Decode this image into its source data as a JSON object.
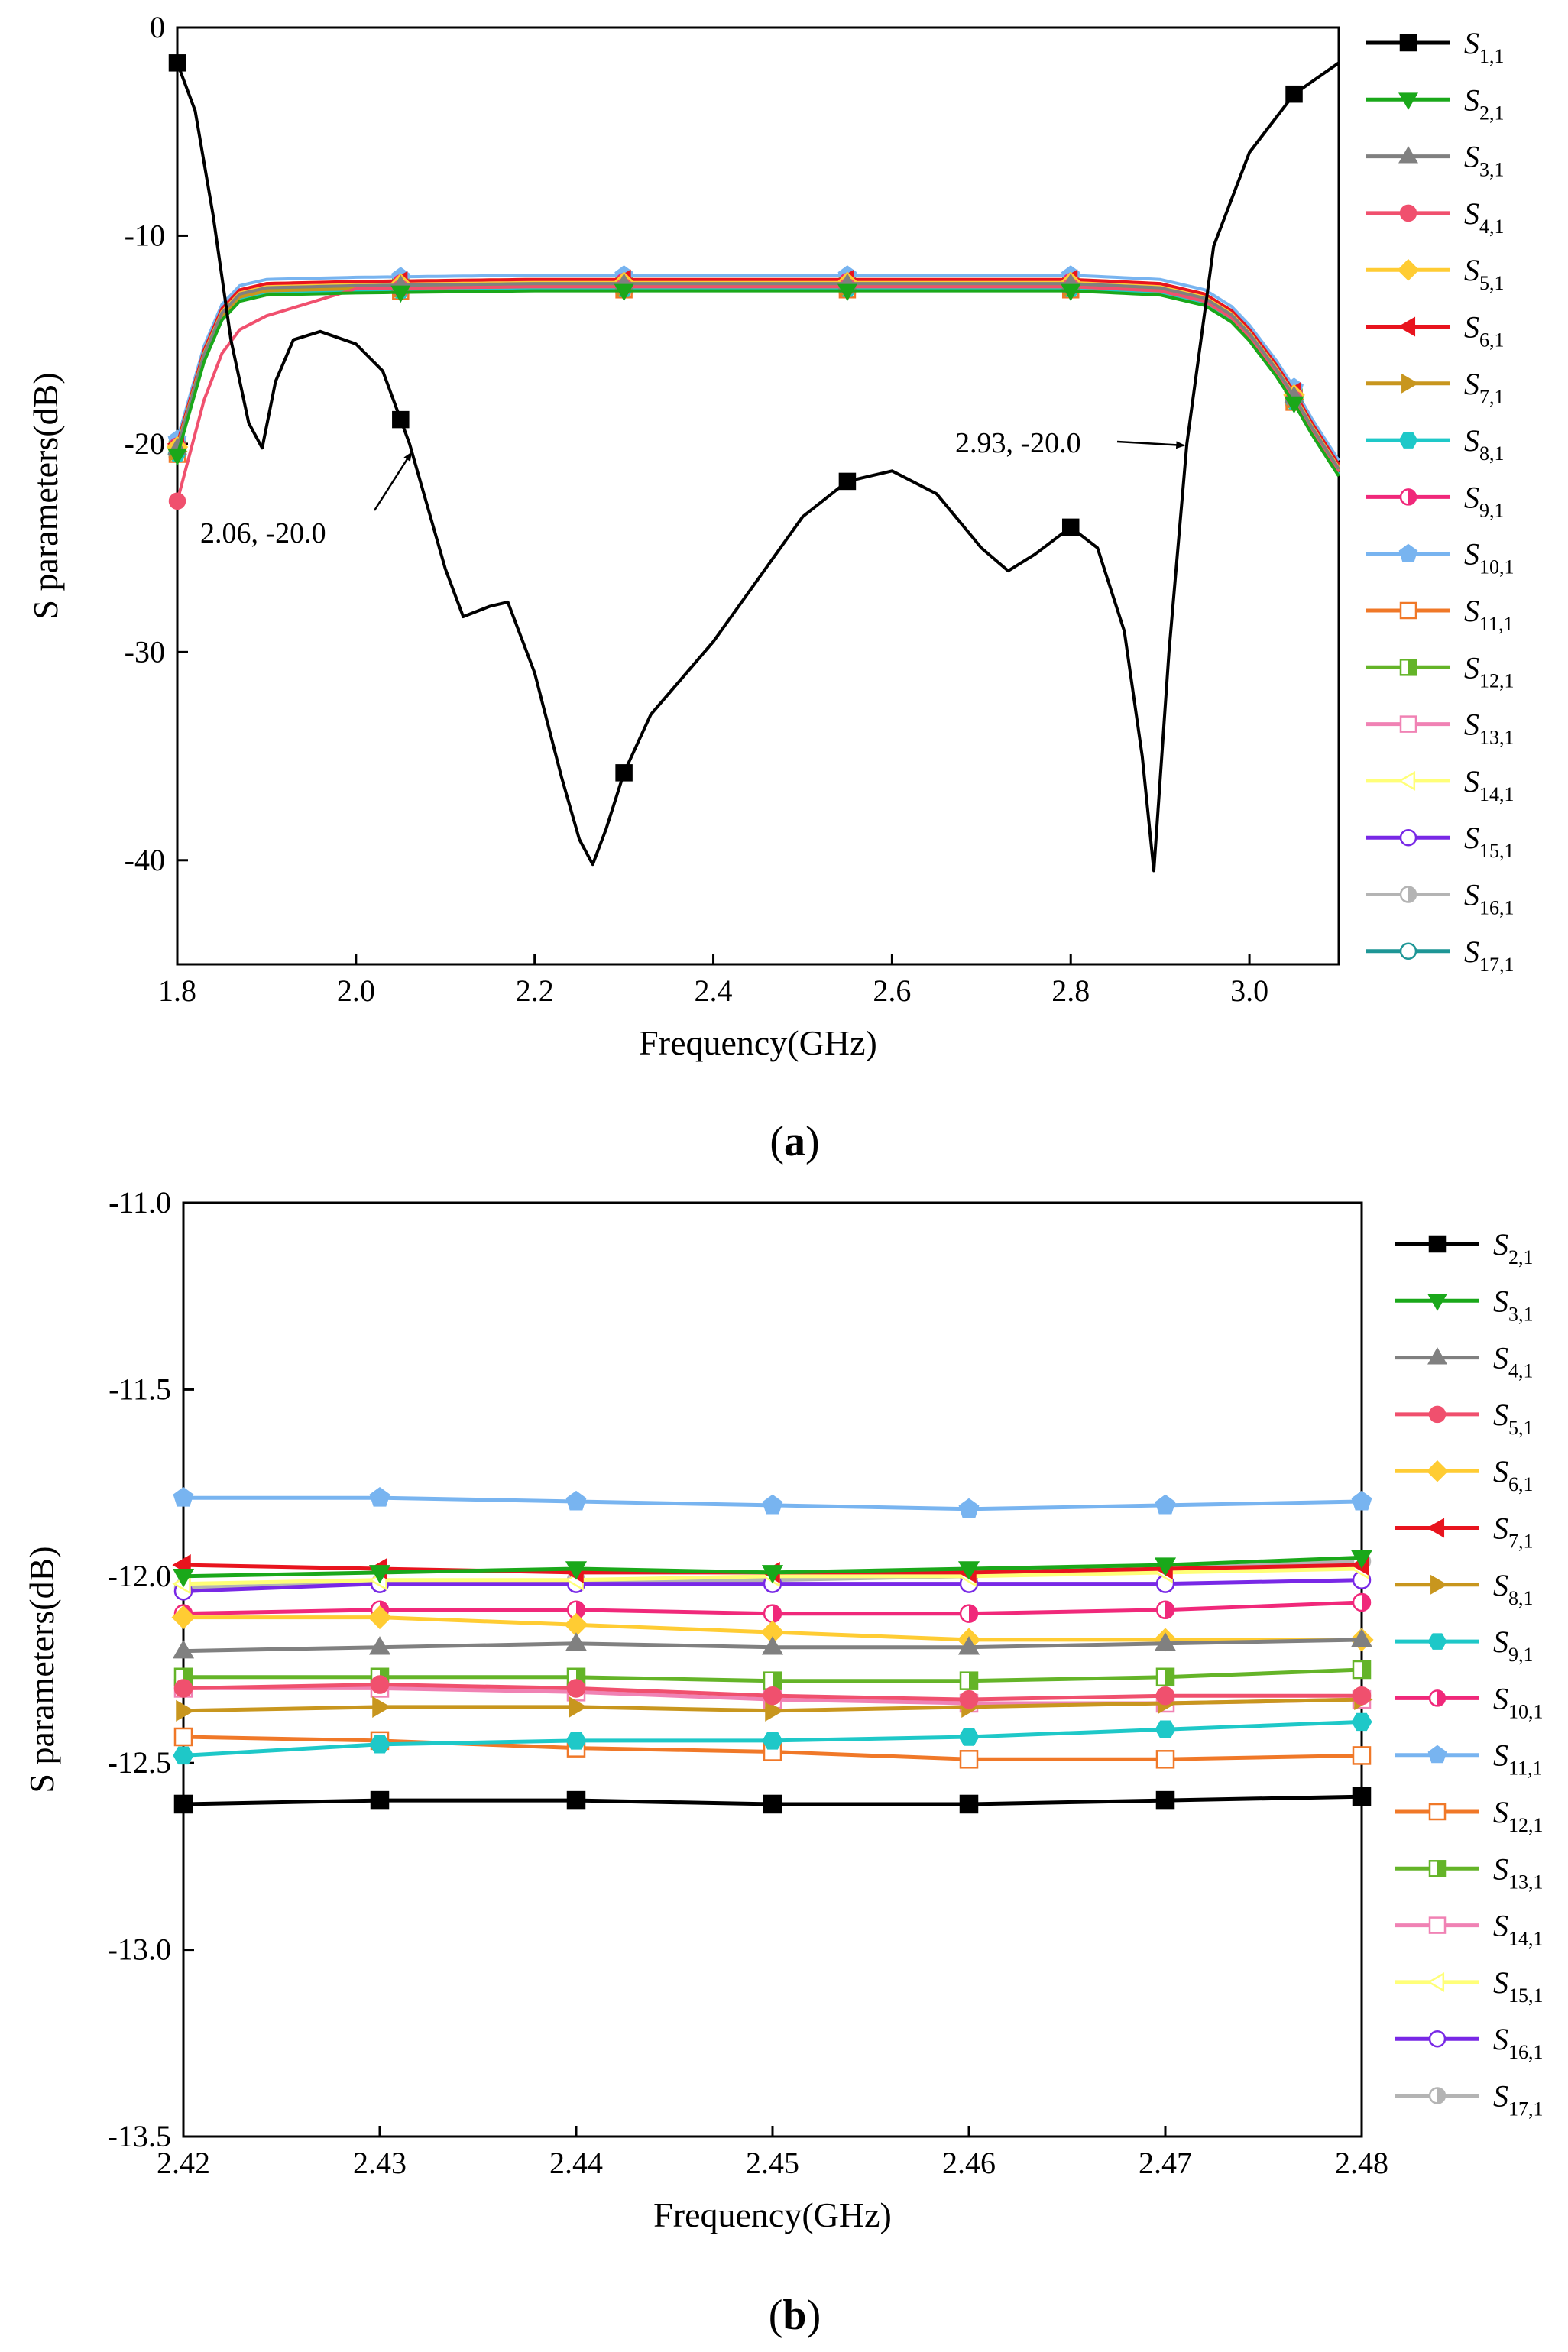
{
  "figure": {
    "panel_a_label": {
      "open": "(",
      "letter": "a",
      "close": ")"
    },
    "panel_b_label": {
      "open": "(",
      "letter": "b",
      "close": ")"
    }
  },
  "chart_data": [
    {
      "type": "line",
      "panel": "a",
      "xlabel": "Frequency(GHz)",
      "ylabel": "S parameters(dB)",
      "xlim": [
        1.8,
        3.1
      ],
      "ylim": [
        -45,
        0
      ],
      "xticks": [
        1.8,
        2.0,
        2.2,
        2.4,
        2.6,
        2.8,
        3.0
      ],
      "xtick_labels": [
        "1.8",
        "2.0",
        "2.2",
        "2.4",
        "2.6",
        "2.8",
        "3.0"
      ],
      "yticks": [
        0,
        -10,
        -20,
        -30,
        -40
      ],
      "ytick_labels": [
        "0",
        "-10",
        "-20",
        "-30",
        "-40"
      ],
      "legend_position": "right",
      "marker_x": [
        1.8,
        2.05,
        2.3,
        2.55,
        2.8,
        3.05
      ],
      "annotations": [
        {
          "text": "2.06, -20.0",
          "x": 2.06,
          "y": -20.0
        },
        {
          "text": "2.93, -20.0",
          "x": 2.93,
          "y": -20.0
        }
      ],
      "series": [
        {
          "name": "S",
          "sub": "1,1",
          "color": "#000000",
          "marker": "square",
          "fill": "full",
          "x": [
            1.8,
            1.82,
            1.84,
            1.86,
            1.88,
            1.895,
            1.91,
            1.93,
            1.96,
            2.0,
            2.03,
            2.06,
            2.08,
            2.1,
            2.12,
            2.15,
            2.17,
            2.2,
            2.23,
            2.25,
            2.265,
            2.28,
            2.3,
            2.33,
            2.36,
            2.4,
            2.45,
            2.5,
            2.55,
            2.6,
            2.65,
            2.7,
            2.73,
            2.76,
            2.8,
            2.83,
            2.86,
            2.88,
            2.893,
            2.91,
            2.93,
            2.96,
            3.0,
            3.05,
            3.1
          ],
          "y": [
            -1.7,
            -4,
            -9,
            -15,
            -19,
            -20.2,
            -17,
            -15,
            -14.6,
            -15.2,
            -16.5,
            -20,
            -23,
            -26,
            -28.3,
            -27.8,
            -27.6,
            -31,
            -36,
            -39,
            -40.2,
            -38.5,
            -35.8,
            -33,
            -31.5,
            -29.5,
            -26.5,
            -23.5,
            -21.8,
            -21.3,
            -22.4,
            -25,
            -26.1,
            -25.3,
            -24,
            -25,
            -29,
            -35,
            -40.5,
            -30,
            -20,
            -10.5,
            -6,
            -3.2,
            -1.7
          ]
        },
        {
          "name": "S",
          "sub": "2,1",
          "color": "#1aa81a",
          "marker": "triangle-down",
          "fill": "full",
          "offset": -0.55
        },
        {
          "name": "S",
          "sub": "3,1",
          "color": "#808080",
          "marker": "triangle-up",
          "fill": "full",
          "offset": -0.2
        },
        {
          "name": "S",
          "sub": "4,1",
          "color": "#f0506e",
          "marker": "circle",
          "fill": "full",
          "offset": -0.35
        },
        {
          "name": "S",
          "sub": "5,1",
          "color": "#ffcc33",
          "marker": "diamond",
          "fill": "full",
          "offset": -0.15
        },
        {
          "name": "S",
          "sub": "6,1",
          "color": "#e8141e",
          "marker": "triangle-left",
          "fill": "full",
          "offset": 0.0
        },
        {
          "name": "S",
          "sub": "7,1",
          "color": "#c8961e",
          "marker": "triangle-right",
          "fill": "full",
          "offset": -0.35
        },
        {
          "name": "S",
          "sub": "8,1",
          "color": "#1ec8c8",
          "marker": "hexagon",
          "fill": "full",
          "offset": -0.45
        },
        {
          "name": "S",
          "sub": "9,1",
          "color": "#f0287a",
          "marker": "circle",
          "fill": "half",
          "offset": -0.1
        },
        {
          "name": "S",
          "sub": "10,1",
          "color": "#78b4f0",
          "marker": "pentagon",
          "fill": "full",
          "offset": 0.2
        },
        {
          "name": "S",
          "sub": "11,1",
          "color": "#f07828",
          "marker": "square",
          "fill": "open",
          "offset": -0.5
        },
        {
          "name": "S",
          "sub": "12,1",
          "color": "#64b428",
          "marker": "square",
          "fill": "half",
          "offset": -0.25
        },
        {
          "name": "S",
          "sub": "13,1",
          "color": "#f082b4",
          "marker": "square",
          "fill": "open",
          "offset": -0.3
        },
        {
          "name": "S",
          "sub": "14,1",
          "color": "#ffff78",
          "marker": "triangle-left",
          "fill": "open",
          "offset": 0.0
        },
        {
          "name": "S",
          "sub": "15,1",
          "color": "#7828e6",
          "marker": "circle",
          "fill": "open",
          "offset": -0.02
        },
        {
          "name": "S",
          "sub": "16,1",
          "color": "#b4b4b4",
          "marker": "circle",
          "fill": "half",
          "offset": -0.05
        },
        {
          "name": "S",
          "sub": "17,1",
          "color": "#1e9696",
          "marker": "circle",
          "fill": "open",
          "offset": -0.25
        }
      ]
    },
    {
      "type": "line",
      "panel": "b",
      "xlabel": "Frequency(GHz)",
      "ylabel": "S parameters(dB)",
      "xlim": [
        2.42,
        2.48
      ],
      "ylim": [
        -13.5,
        -11.0
      ],
      "xticks": [
        2.42,
        2.43,
        2.44,
        2.45,
        2.46,
        2.47,
        2.48
      ],
      "xtick_labels": [
        "2.42",
        "2.43",
        "2.44",
        "2.45",
        "2.46",
        "2.47",
        "2.48"
      ],
      "yticks": [
        -11.0,
        -11.5,
        -12.0,
        -12.5,
        -13.0,
        -13.5
      ],
      "ytick_labels": [
        "-11.0",
        "-11.5",
        "-12.0",
        "-12.5",
        "-13.0",
        "-13.5"
      ],
      "legend_position": "right",
      "x": [
        2.42,
        2.43,
        2.44,
        2.45,
        2.46,
        2.47,
        2.48
      ],
      "series": [
        {
          "name": "S",
          "sub": "2,1",
          "color": "#000000",
          "marker": "square",
          "fill": "full",
          "values": [
            -12.61,
            -12.6,
            -12.6,
            -12.61,
            -12.61,
            -12.6,
            -12.59
          ]
        },
        {
          "name": "S",
          "sub": "3,1",
          "color": "#1aa81a",
          "marker": "triangle-down",
          "fill": "full",
          "values": [
            -12.0,
            -11.99,
            -11.98,
            -11.99,
            -11.98,
            -11.97,
            -11.95
          ]
        },
        {
          "name": "S",
          "sub": "4,1",
          "color": "#808080",
          "marker": "triangle-up",
          "fill": "full",
          "values": [
            -12.2,
            -12.19,
            -12.18,
            -12.19,
            -12.19,
            -12.18,
            -12.17
          ]
        },
        {
          "name": "S",
          "sub": "5,1",
          "color": "#f0506e",
          "marker": "circle",
          "fill": "full",
          "values": [
            -12.3,
            -12.29,
            -12.3,
            -12.32,
            -12.33,
            -12.32,
            -12.32
          ]
        },
        {
          "name": "S",
          "sub": "6,1",
          "color": "#ffcc33",
          "marker": "diamond",
          "fill": "full",
          "values": [
            -12.11,
            -12.11,
            -12.13,
            -12.15,
            -12.17,
            -12.17,
            -12.17
          ]
        },
        {
          "name": "S",
          "sub": "7,1",
          "color": "#e8141e",
          "marker": "triangle-left",
          "fill": "full",
          "values": [
            -11.97,
            -11.98,
            -11.99,
            -11.99,
            -11.99,
            -11.98,
            -11.97
          ]
        },
        {
          "name": "S",
          "sub": "8,1",
          "color": "#c8961e",
          "marker": "triangle-right",
          "fill": "full",
          "values": [
            -12.36,
            -12.35,
            -12.35,
            -12.36,
            -12.35,
            -12.34,
            -12.33
          ]
        },
        {
          "name": "S",
          "sub": "9,1",
          "color": "#1ec8c8",
          "marker": "hexagon",
          "fill": "full",
          "values": [
            -12.48,
            -12.45,
            -12.44,
            -12.44,
            -12.43,
            -12.41,
            -12.39
          ]
        },
        {
          "name": "S",
          "sub": "10,1",
          "color": "#f0287a",
          "marker": "circle",
          "fill": "half",
          "values": [
            -12.1,
            -12.09,
            -12.09,
            -12.1,
            -12.1,
            -12.09,
            -12.07
          ]
        },
        {
          "name": "S",
          "sub": "11,1",
          "color": "#78b4f0",
          "marker": "pentagon",
          "fill": "full",
          "values": [
            -11.79,
            -11.79,
            -11.8,
            -11.81,
            -11.82,
            -11.81,
            -11.8
          ]
        },
        {
          "name": "S",
          "sub": "12,1",
          "color": "#f07828",
          "marker": "square",
          "fill": "open",
          "values": [
            -12.43,
            -12.44,
            -12.46,
            -12.47,
            -12.49,
            -12.49,
            -12.48
          ]
        },
        {
          "name": "S",
          "sub": "13,1",
          "color": "#64b428",
          "marker": "square",
          "fill": "half",
          "values": [
            -12.27,
            -12.27,
            -12.27,
            -12.28,
            -12.28,
            -12.27,
            -12.25
          ]
        },
        {
          "name": "S",
          "sub": "14,1",
          "color": "#f082b4",
          "marker": "square",
          "fill": "open",
          "values": [
            -12.3,
            -12.3,
            -12.31,
            -12.33,
            -12.34,
            -12.34,
            -12.33
          ]
        },
        {
          "name": "S",
          "sub": "15,1",
          "color": "#ffff78",
          "marker": "triangle-left",
          "fill": "open",
          "values": [
            -12.02,
            -12.01,
            -12.01,
            -12.0,
            -12.0,
            -11.99,
            -11.98
          ]
        },
        {
          "name": "S",
          "sub": "16,1",
          "color": "#7828e6",
          "marker": "circle",
          "fill": "open",
          "values": [
            -12.04,
            -12.02,
            -12.02,
            -12.02,
            -12.02,
            -12.02,
            -12.01
          ]
        },
        {
          "name": "S",
          "sub": "17,1",
          "color": "#b4b4b4",
          "marker": "circle",
          "fill": "half",
          "values": [
            -12.03,
            -12.02,
            -12.01,
            -12.01,
            -12.0,
            -11.98,
            -11.96
          ]
        }
      ]
    }
  ]
}
